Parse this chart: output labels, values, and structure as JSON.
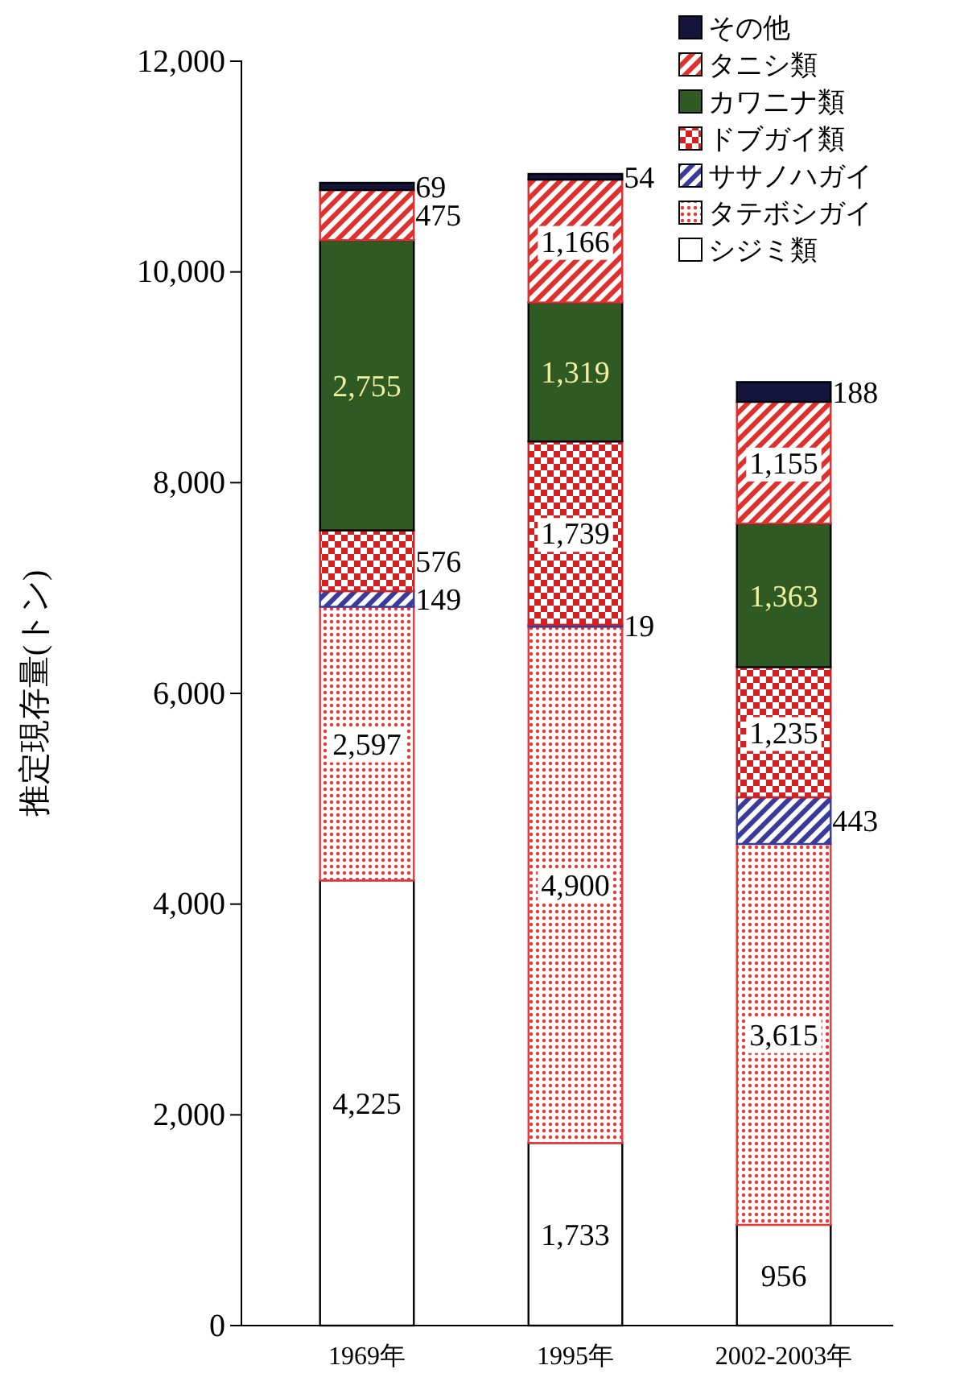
{
  "chart_data": {
    "type": "bar",
    "stacked": true,
    "ylabel": "推定現存量(トン)",
    "categories": [
      "1969年",
      "1995年",
      "2002-2003年"
    ],
    "ylim": [
      0,
      12000
    ],
    "yticks": [
      {
        "value": 0,
        "label": "0"
      },
      {
        "value": 2000,
        "label": "2,000"
      },
      {
        "value": 4000,
        "label": "4,000"
      },
      {
        "value": 6000,
        "label": "6,000"
      },
      {
        "value": 8000,
        "label": "8,000"
      },
      {
        "value": 10000,
        "label": "10,000"
      },
      {
        "value": 12000,
        "label": "12,000"
      }
    ],
    "legend": "top right",
    "series": [
      {
        "name": "シジミ類",
        "color": "#ffffff",
        "values": [
          4225,
          1733,
          956
        ],
        "value_labels": [
          "4,225",
          "1,733",
          "956"
        ]
      },
      {
        "name": "タテボシガイ",
        "color": "#e8393a",
        "values": [
          2597,
          4900,
          3615
        ],
        "value_labels": [
          "2,597",
          "4,900",
          "3,615"
        ]
      },
      {
        "name": "ササノハガイ",
        "color": "#3a3a9a",
        "values": [
          149,
          19,
          443
        ],
        "value_labels": [
          "149",
          "19",
          "443"
        ]
      },
      {
        "name": "ドブガイ類",
        "color": "#d42020",
        "values": [
          576,
          1739,
          1235
        ],
        "value_labels": [
          "576",
          "1,739",
          "1,235"
        ]
      },
      {
        "name": "カワニナ類",
        "color": "#2f5a23",
        "values": [
          2755,
          1319,
          1363
        ],
        "value_labels": [
          "2,755",
          "1,319",
          "1,363"
        ]
      },
      {
        "name": "タニシ類",
        "color": "#e0302e",
        "values": [
          475,
          1166,
          1155
        ],
        "value_labels": [
          "475",
          "1,166",
          "1,155"
        ]
      },
      {
        "name": "その他",
        "color": "#14143c",
        "values": [
          69,
          54,
          188
        ],
        "value_labels": [
          "69",
          "54",
          "188"
        ]
      }
    ]
  }
}
